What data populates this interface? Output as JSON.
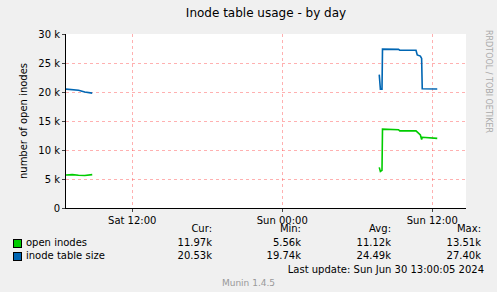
{
  "chart_data": {
    "type": "line",
    "title": "Inode table usage - by day",
    "y_label": "number of open inodes",
    "x": [
      6.7,
      7.2,
      7.7,
      8.2,
      8.8,
      20,
      31.76,
      31.85,
      31.98,
      32.02,
      33.3,
      33.4,
      34.7,
      34.8,
      35.05,
      35.15,
      35.2,
      36.4
    ],
    "series": [
      {
        "name": "open inodes",
        "color": "#00cc00",
        "values": [
          5700,
          5750,
          5650,
          5600,
          5750,
          null,
          7000,
          6300,
          6500,
          13600,
          13500,
          13300,
          13300,
          13100,
          12600,
          11800,
          12200,
          12000
        ],
        "stats": [
          "11.97k",
          "5.56k",
          "11.12k",
          "13.51k"
        ]
      },
      {
        "name": "inode table size",
        "color": "#0066b3",
        "values": [
          20500,
          20400,
          20300,
          20000,
          19800,
          null,
          23000,
          20500,
          20500,
          27400,
          27350,
          27200,
          27200,
          26400,
          26200,
          25800,
          20550,
          20530
        ],
        "stats": [
          "20.53k",
          "19.74k",
          "24.49k",
          "27.40k"
        ]
      }
    ],
    "stats_header": [
      "Cur:",
      "Min:",
      "Avg:",
      "Max:"
    ],
    "xlim": [
      6.7,
      38.7
    ],
    "xticks": [
      {
        "value": 12,
        "label": "Sat 12:00"
      },
      {
        "value": 24,
        "label": "Sun 00:00"
      },
      {
        "value": 36,
        "label": "Sun 12:00"
      }
    ],
    "ylim": [
      0,
      30000
    ],
    "yticks": [
      0,
      {
        "value": 5000,
        "label": "5 k"
      },
      {
        "value": 10000,
        "label": "10 k"
      },
      {
        "value": 15000,
        "label": "15 k"
      },
      {
        "value": 20000,
        "label": "20 k"
      },
      {
        "value": 25000,
        "label": "25 k"
      },
      {
        "value": 30000,
        "label": "30 k"
      }
    ],
    "grid": true,
    "last_update": "Last update:  Sun Jun 30 13:00:05 2024",
    "footer": "Munin 1.4.5",
    "watermark": "RRDTOOL / TOBI OETIKER"
  }
}
